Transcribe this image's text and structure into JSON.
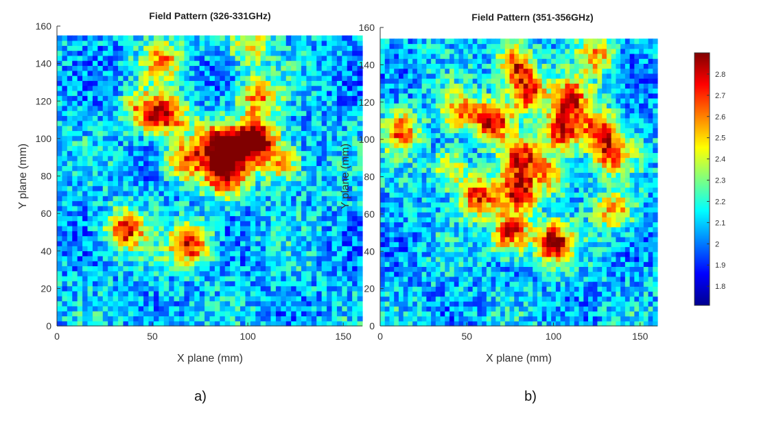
{
  "chart_data": [
    {
      "type": "heatmap",
      "title": "Field Pattern (326-331GHz)",
      "xlabel": "X plane (mm)",
      "ylabel": "Y plane (mm)",
      "xlim": [
        0,
        160
      ],
      "ylim": [
        0,
        160
      ],
      "xticks": [
        0,
        50,
        100,
        150
      ],
      "yticks": [
        0,
        20,
        40,
        60,
        80,
        100,
        120,
        140,
        160
      ],
      "data_extent": {
        "x": [
          0,
          160
        ],
        "y": [
          0,
          155
        ]
      },
      "hotspots": [
        {
          "x": 105,
          "y": 100,
          "value": 2.85
        },
        {
          "x": 88,
          "y": 80,
          "value": 2.8
        },
        {
          "x": 95,
          "y": 95,
          "value": 2.75
        },
        {
          "x": 82,
          "y": 98,
          "value": 2.7
        },
        {
          "x": 70,
          "y": 44,
          "value": 2.8
        },
        {
          "x": 36,
          "y": 51,
          "value": 2.75
        },
        {
          "x": 58,
          "y": 112,
          "value": 2.7
        },
        {
          "x": 105,
          "y": 122,
          "value": 2.6
        },
        {
          "x": 67,
          "y": 88,
          "value": 2.65
        },
        {
          "x": 118,
          "y": 87,
          "value": 2.55
        },
        {
          "x": 55,
          "y": 142,
          "value": 2.55
        },
        {
          "x": 100,
          "y": 150,
          "value": 2.5
        },
        {
          "x": 45,
          "y": 115,
          "value": 2.55
        }
      ]
    },
    {
      "type": "heatmap",
      "title": "Field Pattern (351-356GHz)",
      "xlabel": "X plane (mm)",
      "ylabel": "Y plane (mm)",
      "xlim": [
        0,
        160
      ],
      "ylim": [
        0,
        160
      ],
      "xticks": [
        0,
        50,
        100,
        150
      ],
      "yticks": [
        0,
        20,
        40,
        60,
        80,
        100,
        120,
        140,
        160
      ],
      "data_extent": {
        "x": [
          0,
          160
        ],
        "y": [
          0,
          154
        ]
      },
      "hotspots": [
        {
          "x": 65,
          "y": 110,
          "value": 2.85
        },
        {
          "x": 80,
          "y": 72,
          "value": 2.8
        },
        {
          "x": 75,
          "y": 50,
          "value": 2.85
        },
        {
          "x": 100,
          "y": 45,
          "value": 2.85
        },
        {
          "x": 57,
          "y": 70,
          "value": 2.75
        },
        {
          "x": 78,
          "y": 140,
          "value": 2.75
        },
        {
          "x": 85,
          "y": 125,
          "value": 2.75
        },
        {
          "x": 105,
          "y": 105,
          "value": 2.8
        },
        {
          "x": 110,
          "y": 122,
          "value": 2.7
        },
        {
          "x": 133,
          "y": 93,
          "value": 2.7
        },
        {
          "x": 125,
          "y": 106,
          "value": 2.65
        },
        {
          "x": 12,
          "y": 105,
          "value": 2.65
        },
        {
          "x": 45,
          "y": 115,
          "value": 2.6
        },
        {
          "x": 82,
          "y": 90,
          "value": 2.7
        },
        {
          "x": 135,
          "y": 62,
          "value": 2.6
        },
        {
          "x": 100,
          "y": 82,
          "value": 2.55
        },
        {
          "x": 40,
          "y": 85,
          "value": 2.5
        },
        {
          "x": 125,
          "y": 145,
          "value": 2.55
        }
      ]
    }
  ],
  "colorbar": {
    "min": 1.71,
    "max": 2.9,
    "ticks": [
      1.8,
      1.9,
      2,
      2.1,
      2.2,
      2.3,
      2.4,
      2.5,
      2.6,
      2.7,
      2.8
    ],
    "colormap": "jet"
  },
  "panel_labels": [
    "a)",
    "b)"
  ]
}
